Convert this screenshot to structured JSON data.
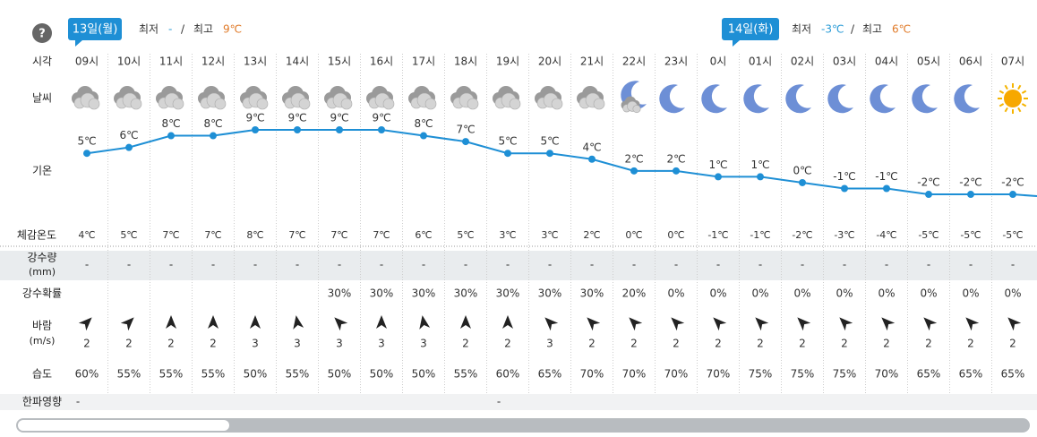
{
  "header": {
    "help": "?",
    "days": [
      {
        "date": "13일(월)",
        "min_label": "최저",
        "min": "-",
        "sep": "/",
        "max_label": "최고",
        "max": "9℃"
      },
      {
        "date": "14일(화)",
        "min_label": "최저",
        "min": "-3℃",
        "sep": "/",
        "max_label": "최고",
        "max": "6℃"
      }
    ]
  },
  "row_labels": {
    "time": "시각",
    "weather": "날씨",
    "temp": "기온",
    "feels": "체감온도",
    "precip_amount": "강수량",
    "precip_unit": "(mm)",
    "precip_prob": "강수확률",
    "wind": "바람",
    "wind_unit": "(m/s)",
    "humidity": "습도",
    "cold": "한파영향"
  },
  "hours": [
    "09시",
    "10시",
    "11시",
    "12시",
    "13시",
    "14시",
    "15시",
    "16시",
    "17시",
    "18시",
    "19시",
    "20시",
    "21시",
    "22시",
    "23시",
    "0시",
    "01시",
    "02시",
    "03시",
    "04시",
    "05시",
    "06시",
    "07시"
  ],
  "temperature": {
    "values": [
      5,
      6,
      8,
      8,
      9,
      9,
      9,
      9,
      8,
      7,
      5,
      5,
      4,
      2,
      2,
      1,
      1,
      0,
      -1,
      -1,
      -2,
      -2,
      -2
    ],
    "value_labels": [
      "5℃",
      "6℃",
      "8℃",
      "8℃",
      "9℃",
      "9℃",
      "9℃",
      "9℃",
      "8℃",
      "7℃",
      "5℃",
      "5℃",
      "4℃",
      "2℃",
      "2℃",
      "1℃",
      "1℃",
      "0℃",
      "-1℃",
      "-1℃",
      "-2℃",
      "-2℃",
      "-2℃"
    ]
  },
  "feels_like": [
    "4℃",
    "5℃",
    "7℃",
    "7℃",
    "8℃",
    "7℃",
    "7℃",
    "7℃",
    "6℃",
    "5℃",
    "3℃",
    "3℃",
    "2℃",
    "0℃",
    "0℃",
    "-1℃",
    "-1℃",
    "-2℃",
    "-3℃",
    "-4℃",
    "-5℃",
    "-5℃",
    "-5℃"
  ],
  "precip_amount": [
    "-",
    "-",
    "-",
    "-",
    "-",
    "-",
    "-",
    "-",
    "-",
    "-",
    "-",
    "-",
    "-",
    "-",
    "-",
    "-",
    "-",
    "-",
    "-",
    "-",
    "-",
    "-",
    "-"
  ],
  "precip_prob": [
    null,
    null,
    null,
    null,
    null,
    null,
    "30%",
    "30%",
    "30%",
    "30%",
    "30%",
    "30%",
    "30%",
    "20%",
    "0%",
    "0%",
    "0%",
    "0%",
    "0%",
    "0%",
    "0%",
    "0%",
    "0%"
  ],
  "wind_speed": [
    2,
    2,
    2,
    2,
    3,
    3,
    3,
    3,
    3,
    2,
    2,
    3,
    2,
    2,
    2,
    2,
    2,
    2,
    2,
    2,
    2,
    2,
    2
  ],
  "humidity": [
    "60%",
    "55%",
    "55%",
    "55%",
    "50%",
    "55%",
    "50%",
    "50%",
    "50%",
    "55%",
    "60%",
    "65%",
    "70%",
    "70%",
    "70%",
    "70%",
    "75%",
    "75%",
    "75%",
    "70%",
    "65%",
    "65%",
    "65%"
  ],
  "cold_impact": [
    "-",
    null,
    null,
    null,
    null,
    null,
    null,
    null,
    null,
    null,
    "-",
    null,
    null,
    null,
    null,
    null,
    null,
    null,
    null,
    null,
    null,
    null,
    null
  ]
}
